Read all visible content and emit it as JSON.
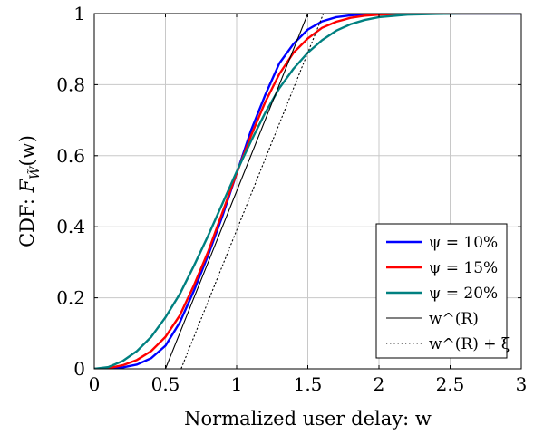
{
  "chart_data": {
    "type": "line",
    "xlabel": "Normalized user delay: w",
    "ylabel": "CDF: F_W̃(w)",
    "ylabel_parts": {
      "prefix": "CDF: ",
      "F": "F",
      "sub": "W̃",
      "arg": "(w)"
    },
    "xlim": [
      0,
      3
    ],
    "ylim": [
      0,
      1
    ],
    "xticks": [
      0,
      0.5,
      1,
      1.5,
      2,
      2.5,
      3
    ],
    "xtick_labels": [
      "0",
      "0.5",
      "1",
      "1.5",
      "2",
      "2.5",
      "3"
    ],
    "yticks": [
      0,
      0.2,
      0.4,
      0.6,
      0.8,
      1
    ],
    "ytick_labels": [
      "0",
      "0.2",
      "0.4",
      "0.6",
      "0.8",
      "1"
    ],
    "grid": true,
    "legend_position": "bottom-right",
    "series": [
      {
        "name": "ψ = 10%",
        "color": "#0000ff",
        "style": "solid",
        "x": [
          0,
          0.1,
          0.2,
          0.3,
          0.4,
          0.5,
          0.6,
          0.7,
          0.8,
          0.9,
          1.0,
          1.1,
          1.2,
          1.3,
          1.4,
          1.5,
          1.6,
          1.7,
          1.8,
          1.9,
          2.0,
          2.2,
          2.4,
          2.6,
          2.8,
          3.0
        ],
        "y": [
          0,
          0.0005,
          0.004,
          0.012,
          0.03,
          0.065,
          0.13,
          0.22,
          0.32,
          0.43,
          0.55,
          0.67,
          0.77,
          0.86,
          0.915,
          0.955,
          0.978,
          0.99,
          0.995,
          0.998,
          0.999,
          1,
          1,
          1,
          1,
          1
        ]
      },
      {
        "name": "ψ = 15%",
        "color": "#ff0000",
        "style": "solid",
        "x": [
          0,
          0.1,
          0.2,
          0.3,
          0.4,
          0.5,
          0.6,
          0.7,
          0.8,
          0.9,
          1.0,
          1.1,
          1.2,
          1.3,
          1.4,
          1.5,
          1.6,
          1.7,
          1.8,
          1.9,
          2.0,
          2.2,
          2.4,
          2.6,
          2.8,
          3.0
        ],
        "y": [
          0,
          0.002,
          0.01,
          0.025,
          0.05,
          0.09,
          0.15,
          0.235,
          0.33,
          0.44,
          0.55,
          0.655,
          0.75,
          0.83,
          0.89,
          0.93,
          0.96,
          0.977,
          0.988,
          0.994,
          0.997,
          0.999,
          1,
          1,
          1,
          1
        ]
      },
      {
        "name": "ψ = 20%",
        "color": "#008080",
        "style": "solid",
        "x": [
          0,
          0.1,
          0.2,
          0.3,
          0.4,
          0.5,
          0.6,
          0.7,
          0.8,
          0.9,
          1.0,
          1.1,
          1.2,
          1.3,
          1.4,
          1.5,
          1.6,
          1.7,
          1.8,
          1.9,
          2.0,
          2.2,
          2.4,
          2.6,
          2.8,
          3.0
        ],
        "y": [
          0,
          0.005,
          0.022,
          0.05,
          0.09,
          0.145,
          0.21,
          0.29,
          0.375,
          0.465,
          0.555,
          0.64,
          0.72,
          0.79,
          0.845,
          0.89,
          0.925,
          0.952,
          0.97,
          0.982,
          0.99,
          0.997,
          0.999,
          1,
          1,
          1
        ]
      },
      {
        "name": "w^(R)",
        "color": "#000000",
        "style": "solid",
        "x": [
          0,
          0.5,
          1.5,
          3.0
        ],
        "y": [
          0,
          0,
          1,
          1
        ]
      },
      {
        "name": "w^(R) + ξ",
        "color": "#000000",
        "style": "dotted",
        "x": [
          0,
          0.61,
          1.61,
          3.0
        ],
        "y": [
          0,
          0,
          1,
          1
        ]
      }
    ]
  }
}
